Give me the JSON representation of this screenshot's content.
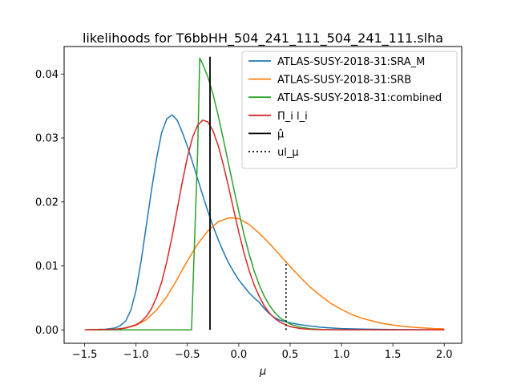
{
  "chart_data": {
    "type": "line",
    "title": "likelihoods for T6bbHH_504_241_111_504_241_111.slha",
    "xlabel": "μ",
    "ylabel": "",
    "xlim": [
      -1.7,
      2.17
    ],
    "ylim": [
      -0.0021,
      0.0443
    ],
    "x_ticks": [
      -1.5,
      -1.0,
      -0.5,
      0.0,
      0.5,
      1.0,
      1.5,
      2.0
    ],
    "x_tick_labels": [
      "−1.5",
      "−1.0",
      "−0.5",
      "0.0",
      "0.5",
      "1.0",
      "1.5",
      "2.0"
    ],
    "y_ticks": [
      0.0,
      0.01,
      0.02,
      0.03,
      0.04
    ],
    "y_tick_labels": [
      "0.00",
      "0.01",
      "0.02",
      "0.03",
      "0.04"
    ],
    "grid": false,
    "legend_position": "top-right",
    "series": [
      {
        "name": "ATLAS-SUSY-2018-31:SRA_M",
        "color": "#1f77b4",
        "style": "solid",
        "x": [
          -1.5,
          -1.3,
          -1.2,
          -1.15,
          -1.1,
          -1.05,
          -1.0,
          -0.95,
          -0.9,
          -0.85,
          -0.8,
          -0.75,
          -0.7,
          -0.65,
          -0.6,
          -0.55,
          -0.5,
          -0.45,
          -0.4,
          -0.35,
          -0.3,
          -0.25,
          -0.2,
          -0.15,
          -0.1,
          -0.05,
          0.0,
          0.05,
          0.1,
          0.15,
          0.2,
          0.25,
          0.3,
          0.35,
          0.4,
          0.5,
          0.6,
          0.7,
          0.8,
          0.9,
          1.0,
          1.2,
          1.4,
          1.6,
          1.8,
          2.0
        ],
        "y": [
          0.0,
          0.0001,
          0.0003,
          0.0007,
          0.0014,
          0.0031,
          0.0062,
          0.0108,
          0.0163,
          0.0218,
          0.0268,
          0.0309,
          0.033,
          0.0336,
          0.0328,
          0.0309,
          0.0287,
          0.0262,
          0.0236,
          0.021,
          0.0185,
          0.0162,
          0.0141,
          0.0122,
          0.0105,
          0.0091,
          0.0078,
          0.0068,
          0.0058,
          0.005,
          0.0043,
          0.0033,
          0.0025,
          0.0019,
          0.0015,
          0.0011,
          0.0008,
          0.0006,
          0.0004,
          0.0003,
          0.0002,
          0.00012,
          8e-05,
          5e-05,
          3e-05,
          2e-05
        ]
      },
      {
        "name": "ATLAS-SUSY-2018-31:SRB",
        "color": "#ff7f0e",
        "style": "solid",
        "x": [
          -1.5,
          -1.3,
          -1.2,
          -1.1,
          -1.0,
          -0.9,
          -0.8,
          -0.7,
          -0.6,
          -0.5,
          -0.4,
          -0.3,
          -0.2,
          -0.1,
          -0.05,
          0.0,
          0.1,
          0.2,
          0.3,
          0.4,
          0.5,
          0.6,
          0.7,
          0.8,
          0.9,
          1.0,
          1.1,
          1.2,
          1.3,
          1.4,
          1.5,
          1.6,
          1.7,
          1.8,
          1.9,
          2.0
        ],
        "y": [
          0.0,
          5e-05,
          0.0001,
          0.0003,
          0.0007,
          0.0016,
          0.0031,
          0.0052,
          0.0079,
          0.0108,
          0.0134,
          0.0155,
          0.0169,
          0.0175,
          0.0175,
          0.0174,
          0.0165,
          0.0151,
          0.0135,
          0.0117,
          0.0099,
          0.0082,
          0.0066,
          0.0053,
          0.0041,
          0.0032,
          0.0024,
          0.0018,
          0.0014,
          0.001,
          0.00075,
          0.00055,
          0.0004,
          0.0003,
          0.0002,
          0.00015
        ]
      },
      {
        "name": "ATLAS-SUSY-2018-31:combined",
        "color": "#2ca02c",
        "style": "solid",
        "x": [
          -1.5,
          -0.46,
          -0.4,
          -0.38,
          -0.35,
          -0.3,
          -0.25,
          -0.2,
          -0.15,
          -0.1,
          -0.05,
          0.0,
          0.05,
          0.1,
          0.15,
          0.2,
          0.25,
          0.3,
          0.35,
          0.4,
          0.5,
          0.6,
          0.7,
          0.8,
          0.9,
          1.0,
          1.2,
          1.4,
          1.6,
          1.8,
          2.0
        ],
        "y": [
          0.0,
          0.0,
          0.028,
          0.0425,
          0.0415,
          0.0395,
          0.0368,
          0.0335,
          0.0298,
          0.026,
          0.0222,
          0.0185,
          0.015,
          0.0119,
          0.0092,
          0.007,
          0.0052,
          0.0038,
          0.0027,
          0.0019,
          0.0009,
          0.0004,
          0.00018,
          8e-05,
          3e-05,
          1e-05,
          0.0,
          0.0,
          0.0,
          0.0,
          0.0
        ]
      },
      {
        "name": "Π_i l_i",
        "color": "#d62728",
        "style": "solid",
        "x": [
          -1.5,
          -1.2,
          -1.1,
          -1.0,
          -0.95,
          -0.9,
          -0.85,
          -0.8,
          -0.75,
          -0.7,
          -0.65,
          -0.6,
          -0.55,
          -0.5,
          -0.45,
          -0.4,
          -0.35,
          -0.3,
          -0.25,
          -0.2,
          -0.15,
          -0.1,
          -0.05,
          0.0,
          0.05,
          0.1,
          0.15,
          0.2,
          0.25,
          0.3,
          0.35,
          0.4,
          0.5,
          0.6,
          0.7,
          0.8,
          0.9,
          1.0,
          1.2,
          1.4,
          1.6,
          1.8,
          2.0
        ],
        "y": [
          0.0,
          0.0001,
          0.0003,
          0.0008,
          0.0013,
          0.0021,
          0.0033,
          0.0051,
          0.0075,
          0.0107,
          0.0145,
          0.0188,
          0.0231,
          0.027,
          0.0301,
          0.032,
          0.0328,
          0.0325,
          0.0311,
          0.0288,
          0.0258,
          0.0224,
          0.0188,
          0.0153,
          0.0121,
          0.0093,
          0.007,
          0.0052,
          0.0037,
          0.0026,
          0.0018,
          0.0012,
          0.0005,
          0.0002,
          8e-05,
          3e-05,
          1e-05,
          0.0,
          0.0,
          0.0,
          0.0,
          0.0,
          0.0
        ]
      }
    ],
    "vlines": [
      {
        "name": "μ̂",
        "x": 0.0,
        "note_x_value": -0.28,
        "ymin": 0.0,
        "ymax": 0.0427,
        "color": "#000000",
        "style": "solid"
      },
      {
        "name": "ul_μ",
        "x": 0.46,
        "ymin": 0.0,
        "ymax": 0.0107,
        "color": "#000000",
        "style": "dotted"
      }
    ]
  }
}
